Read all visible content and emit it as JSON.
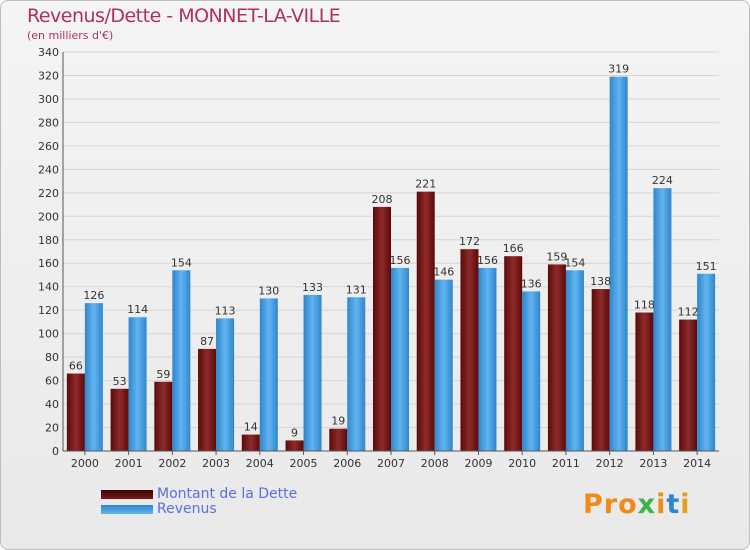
{
  "title": "Revenus/Dette - MONNET-LA-VILLE",
  "subtitle": "(en milliers d'€)",
  "colors": {
    "dette": "#7a1a1a",
    "revenus": "#4aa3e6",
    "title": "#b0305a"
  },
  "legend": {
    "dette": "Montant de la Dette",
    "revenus": "Revenus"
  },
  "logo": {
    "p1": "Pro",
    "x": "x",
    "i1": "i",
    "t": "t",
    "i2": "i"
  },
  "chart_data": {
    "type": "bar",
    "title": "Revenus/Dette - MONNET-LA-VILLE",
    "ylabel": "(en milliers d'€)",
    "ylim": [
      0,
      340
    ],
    "yticks": [
      0,
      20,
      40,
      60,
      80,
      100,
      120,
      140,
      160,
      180,
      200,
      220,
      240,
      260,
      280,
      300,
      320,
      340
    ],
    "grid": true,
    "legend_position": "bottom-left",
    "categories": [
      "2000",
      "2001",
      "2002",
      "2003",
      "2004",
      "2005",
      "2006",
      "2007",
      "2008",
      "2009",
      "2010",
      "2011",
      "2012",
      "2013",
      "2014"
    ],
    "series": [
      {
        "name": "Montant de la Dette",
        "values": [
          66,
          53,
          59,
          87,
          14,
          9,
          19,
          208,
          221,
          172,
          166,
          159,
          138,
          118,
          112
        ]
      },
      {
        "name": "Revenus",
        "values": [
          126,
          114,
          154,
          113,
          130,
          133,
          131,
          156,
          146,
          156,
          136,
          154,
          319,
          224,
          151
        ]
      }
    ]
  }
}
